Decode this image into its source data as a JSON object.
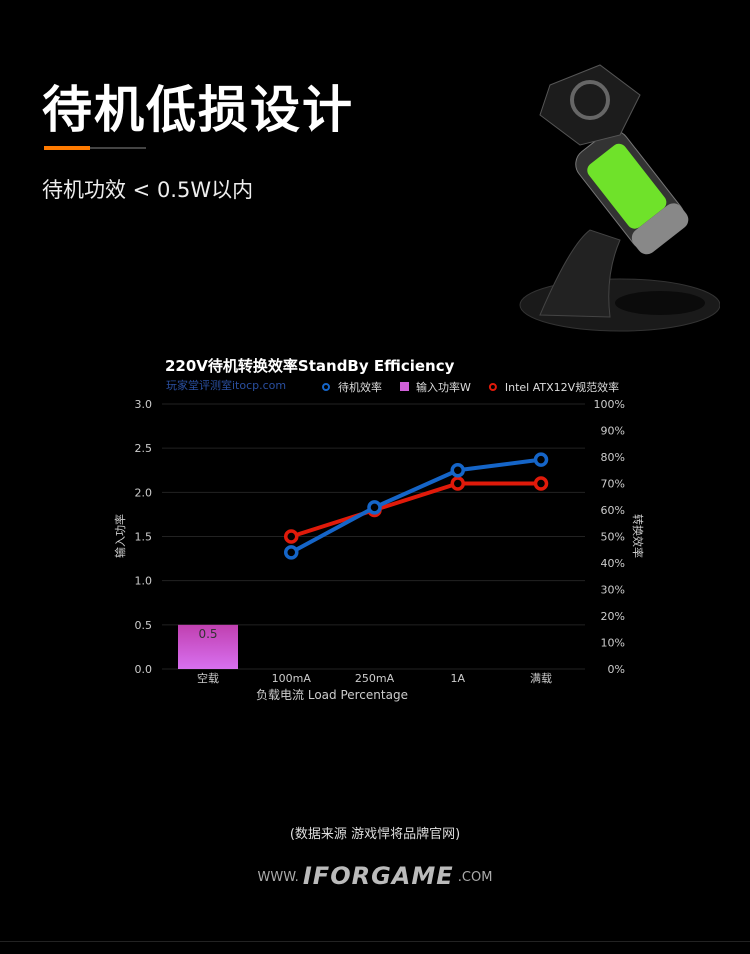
{
  "header": {
    "title": "待机低损设计",
    "subtitle": "待机功效 < 0.5W以内"
  },
  "colors": {
    "accent": "#ff7a00",
    "blue_series": "#1565c8",
    "red_series": "#e01a0a",
    "bar": "#d060d8",
    "battery": "#6fe22a"
  },
  "chart_data": {
    "type": "bar+line",
    "title": "220V待机转换效率StandBy Efficiency",
    "watermark": "玩家堂评测室itocp.com",
    "xlabel": "负载电流 Load Percentage",
    "ylabel": "输入功率",
    "y2label": "转换效率",
    "categories": [
      "空载",
      "100mA",
      "250mA",
      "1A",
      "满载"
    ],
    "ylim": [
      0,
      3.0
    ],
    "yticks": [
      "0.0",
      "0.5",
      "1.0",
      "1.5",
      "2.0",
      "2.5",
      "3.0"
    ],
    "y2lim": [
      0,
      100
    ],
    "y2ticks": [
      "0%",
      "10%",
      "20%",
      "30%",
      "40%",
      "50%",
      "60%",
      "70%",
      "80%",
      "90%",
      "100%"
    ],
    "grid": true,
    "legend_position": "top-right",
    "series": [
      {
        "name": "待机效率",
        "type": "line",
        "axis": "right",
        "color": "#1565c8",
        "values": [
          null,
          44,
          61,
          75,
          79
        ]
      },
      {
        "name": "输入功率W",
        "type": "bar",
        "axis": "left",
        "color": "#d060d8",
        "values": [
          0.5,
          null,
          null,
          null,
          null
        ],
        "labels": [
          "0.5",
          null,
          null,
          null,
          null
        ]
      },
      {
        "name": "Intel ATX12V规范效率",
        "type": "line",
        "axis": "right",
        "color": "#e01a0a",
        "values": [
          null,
          50,
          60,
          70,
          70
        ]
      }
    ]
  },
  "footer": {
    "source": "(数据来源 游戏悍将品牌官网)",
    "logo_prefix": "WWW.",
    "logo": "IFORGAME",
    "logo_suffix": ".COM"
  }
}
